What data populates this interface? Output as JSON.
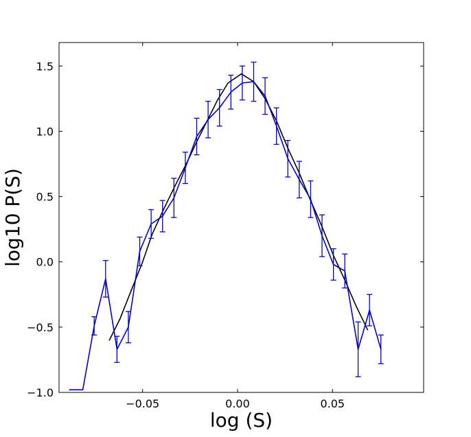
{
  "chart_data": {
    "type": "line",
    "title": "",
    "xlabel": "log (S)",
    "ylabel": "log10 P(S)",
    "xlim": [
      -0.094,
      0.098
    ],
    "ylim": [
      -1.0,
      1.68
    ],
    "xticks": [
      -0.05,
      0.0,
      0.05
    ],
    "xtick_labels": [
      "−0.05",
      "0.00",
      "0.05"
    ],
    "yticks": [
      -1.0,
      -0.5,
      0.0,
      0.5,
      1.0,
      1.5
    ],
    "ytick_labels": [
      "−1.0",
      "−0.5",
      "0.0",
      "0.5",
      "1.0",
      "1.5"
    ],
    "grid": false,
    "series": [
      {
        "color": "#000000",
        "x": [
          -0.0675,
          -0.062,
          -0.056,
          -0.05,
          -0.045,
          -0.039,
          -0.033,
          -0.027,
          -0.0215,
          -0.016,
          -0.0105,
          -0.005,
          0.002,
          0.0085,
          0.0145,
          0.0205,
          0.0265,
          0.0325,
          0.0385,
          0.0445,
          0.0505,
          0.0565,
          0.0625,
          0.0685
        ],
        "y": [
          -0.6,
          -0.44,
          -0.22,
          0.0,
          0.21,
          0.4,
          0.58,
          0.75,
          0.92,
          1.08,
          1.24,
          1.37,
          1.44,
          1.38,
          1.25,
          1.08,
          0.87,
          0.68,
          0.47,
          0.27,
          0.05,
          -0.14,
          -0.34,
          -0.52
        ]
      },
      {
        "color": "#0000cc",
        "x": [
          -0.0885,
          -0.0815,
          -0.0755,
          -0.0695,
          -0.0635,
          -0.0575,
          -0.0515,
          -0.0455,
          -0.0395,
          -0.0335,
          -0.0275,
          -0.0215,
          -0.0155,
          -0.0095,
          -0.0035,
          0.0025,
          0.0085,
          0.0145,
          0.0205,
          0.0265,
          0.0325,
          0.0385,
          0.0445,
          0.0505,
          0.0565,
          0.0635,
          0.0695,
          0.0755
        ],
        "y": [
          -0.98,
          -0.98,
          -0.49,
          -0.13,
          -0.67,
          -0.5,
          0.08,
          0.29,
          0.35,
          0.49,
          0.72,
          0.96,
          1.09,
          1.18,
          1.3,
          1.37,
          1.38,
          1.27,
          1.04,
          0.79,
          0.63,
          0.48,
          0.2,
          -0.02,
          -0.07,
          -0.67,
          -0.37,
          -0.67
        ],
        "err": [
          null,
          null,
          0.07,
          0.14,
          0.1,
          0.12,
          0.11,
          0.11,
          0.12,
          0.15,
          0.12,
          0.14,
          0.14,
          0.14,
          0.13,
          0.13,
          0.15,
          0.14,
          0.14,
          0.14,
          0.14,
          0.14,
          0.16,
          0.12,
          0.13,
          0.21,
          0.12,
          0.11
        ]
      }
    ]
  }
}
